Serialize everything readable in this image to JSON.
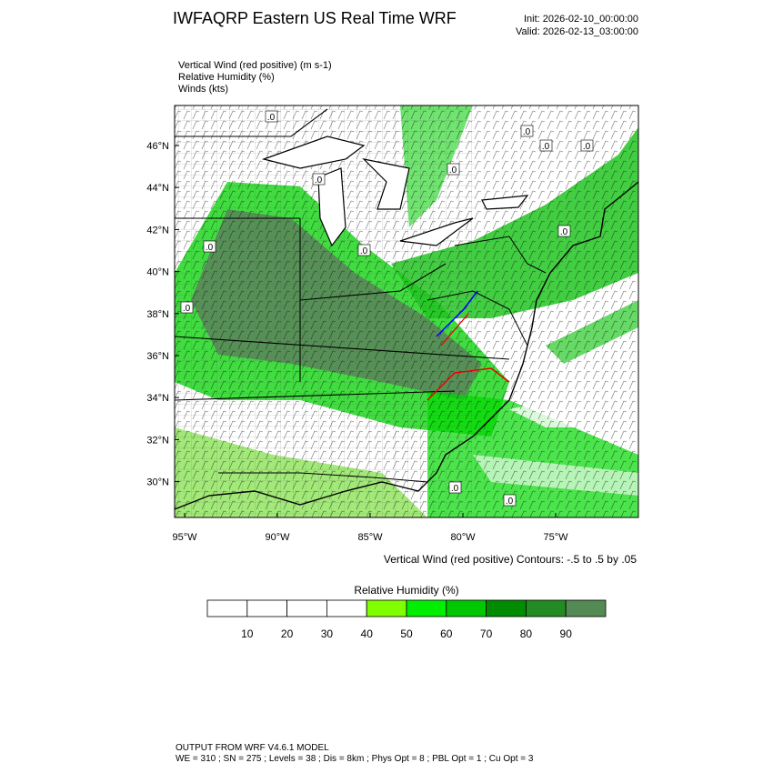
{
  "header": {
    "title": "IWFAQRP Eastern US Real Time WRF",
    "init": "Init: 2026-02-10_00:00:00",
    "valid": "Valid: 2026-02-13_03:00:00"
  },
  "fields": [
    "Vertical Wind (red positive)   (m s-1)",
    "Relative Humidity   (%)",
    "Winds   (kts)"
  ],
  "map": {
    "lat_labels": [
      "46°N",
      "44°N",
      "42°N",
      "40°N",
      "38°N",
      "36°N",
      "34°N",
      "32°N",
      "30°N"
    ],
    "lon_labels": [
      "95°W",
      "90°W",
      "85°W",
      "80°W",
      "75°W"
    ],
    "contour_labels": [
      ".0",
      ".0",
      ".0",
      ".0",
      ".0",
      ".0",
      ".0",
      ".0",
      ".0",
      ".0",
      ".0",
      ".0"
    ],
    "contour_note": "Vertical Wind (red positive) Contours: -.5 to .5 by .05"
  },
  "colorbar": {
    "title": "Relative Humidity  (%)",
    "ticks": [
      10,
      20,
      30,
      40,
      50,
      60,
      70,
      80,
      90
    ],
    "colors": [
      "#ffffff",
      "#ffffff",
      "#ffffff",
      "#ffffff",
      "#80ff00",
      "#00ee00",
      "#00c800",
      "#008b00",
      "#228b22",
      "#548b54"
    ]
  },
  "footer": [
    "OUTPUT FROM WRF V4.6.1 MODEL",
    "WE = 310 ; SN = 275 ; Levels = 38 ; Dis = 8km ; Phys Opt = 8 ; PBL Opt = 1 ; Cu Opt = 3"
  ]
}
